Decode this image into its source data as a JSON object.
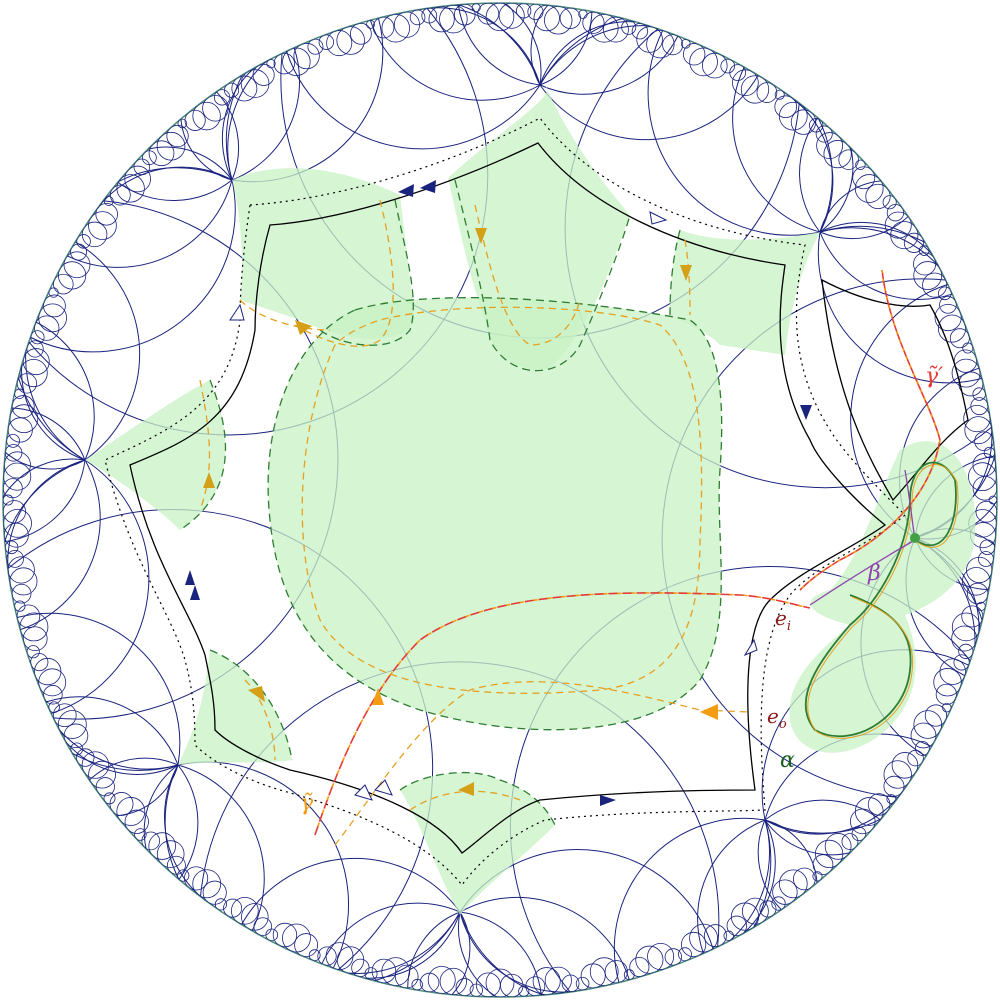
{
  "figure": {
    "labels": {
      "gamma_prime_tilde": "γ̃′",
      "gamma_tilde": "γ̃",
      "beta": "β",
      "alpha": "α",
      "e_i": {
        "base": "e",
        "sub": "i"
      },
      "e_o": {
        "base": "e",
        "sub": "o"
      }
    },
    "colors": {
      "tessellation": "#1a237e",
      "region_fill": "#c8f2c4",
      "region_stroke": "#2e7d32",
      "boundary": "#000000",
      "curve_orange": "#f39c12",
      "curve_gold": "#d4a017",
      "curve_red": "#e53935",
      "beta_color": "#8e44ad",
      "e_label_color": "#8b1a1a",
      "alpha_color": "#1b5e20",
      "disk_border": "#4a8a7a"
    },
    "icons": {
      "orientation_arrow_filled": "triangle-filled",
      "orientation_arrow_open": "triangle-open",
      "curve_arrow": "triangle-filled"
    }
  }
}
